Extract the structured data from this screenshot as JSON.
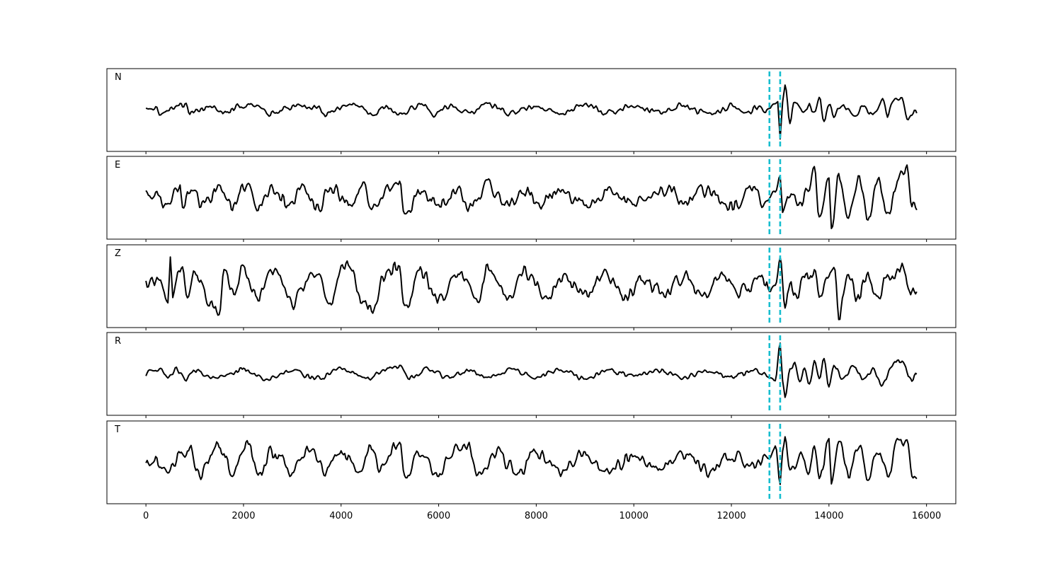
{
  "chart_data": {
    "type": "line",
    "x_axis": {
      "min": -800,
      "max": 16600,
      "ticks": [
        0,
        2000,
        4000,
        6000,
        8000,
        10000,
        12000,
        14000,
        16000
      ],
      "tick_labels": [
        "0",
        "2000",
        "4000",
        "6000",
        "8000",
        "10000",
        "12000",
        "14000",
        "16000"
      ]
    },
    "y_axis": {
      "shown": false,
      "min": -1.25,
      "max": 1.25
    },
    "grid": false,
    "line_color": "#000000",
    "marker_color": "#17becf",
    "markers": {
      "style": "dashed",
      "x": [
        12780,
        13000
      ]
    },
    "x_samples": {
      "start": 0,
      "end": 15800,
      "step": 25
    },
    "panels": [
      {
        "label": "N",
        "keypoints": [
          [
            0,
            0.0
          ],
          [
            200,
            0.07
          ],
          [
            300,
            -0.09
          ],
          [
            500,
            0.05
          ],
          [
            800,
            0.15
          ],
          [
            900,
            -0.12
          ],
          [
            1200,
            0.06
          ],
          [
            1500,
            0.08
          ],
          [
            1600,
            -0.08
          ],
          [
            2000,
            0.12
          ],
          [
            2300,
            0.19
          ],
          [
            2500,
            -0.1
          ],
          [
            3000,
            0.08
          ],
          [
            3500,
            0.12
          ],
          [
            3700,
            -0.14
          ],
          [
            4000,
            0.09
          ],
          [
            4400,
            0.14
          ],
          [
            4600,
            -0.12
          ],
          [
            5000,
            0.1
          ],
          [
            5200,
            -0.2
          ],
          [
            5500,
            0.08
          ],
          [
            5700,
            0.2
          ],
          [
            5900,
            -0.15
          ],
          [
            6200,
            0.1
          ],
          [
            6600,
            -0.1
          ],
          [
            7000,
            0.12
          ],
          [
            7500,
            -0.08
          ],
          [
            8000,
            0.1
          ],
          [
            8500,
            -0.08
          ],
          [
            9000,
            0.12
          ],
          [
            9500,
            -0.1
          ],
          [
            10000,
            0.1
          ],
          [
            10400,
            -0.06
          ],
          [
            11000,
            0.12
          ],
          [
            11500,
            -0.1
          ],
          [
            12000,
            0.1
          ],
          [
            12300,
            -0.08
          ],
          [
            12600,
            0.1
          ],
          [
            12700,
            -0.05
          ],
          [
            12780,
            0.05
          ],
          [
            12850,
            0.15
          ],
          [
            12950,
            0.25
          ],
          [
            13000,
            -0.9
          ],
          [
            13050,
            0.2
          ],
          [
            13100,
            0.75
          ],
          [
            13200,
            -0.3
          ],
          [
            13300,
            0.25
          ],
          [
            13400,
            0.1
          ],
          [
            13500,
            -0.15
          ],
          [
            13600,
            0.2
          ],
          [
            13700,
            -0.1
          ],
          [
            13800,
            0.45
          ],
          [
            13900,
            -0.35
          ],
          [
            14000,
            0.2
          ],
          [
            14100,
            -0.15
          ],
          [
            14300,
            0.15
          ],
          [
            14500,
            -0.1
          ],
          [
            14700,
            0.08
          ],
          [
            14900,
            -0.12
          ],
          [
            15100,
            0.3
          ],
          [
            15200,
            -0.2
          ],
          [
            15300,
            0.25
          ],
          [
            15500,
            0.35
          ],
          [
            15600,
            -0.25
          ],
          [
            15800,
            0.0
          ]
        ],
        "wiggle": 0.14
      },
      {
        "label": "E",
        "keypoints": [
          [
            0,
            0.0
          ],
          [
            200,
            0.2
          ],
          [
            400,
            -0.2
          ],
          [
            700,
            0.3
          ],
          [
            750,
            -0.3
          ],
          [
            900,
            0.25
          ],
          [
            1200,
            -0.2
          ],
          [
            1500,
            0.35
          ],
          [
            1800,
            -0.3
          ],
          [
            2000,
            0.3
          ],
          [
            2100,
            0.45
          ],
          [
            2300,
            -0.3
          ],
          [
            2600,
            0.25
          ],
          [
            3000,
            -0.25
          ],
          [
            3200,
            0.35
          ],
          [
            3500,
            -0.3
          ],
          [
            3800,
            0.3
          ],
          [
            4200,
            -0.25
          ],
          [
            4500,
            0.35
          ],
          [
            4600,
            -0.35
          ],
          [
            5000,
            0.3
          ],
          [
            5200,
            0.55
          ],
          [
            5300,
            -0.55
          ],
          [
            5600,
            0.2
          ],
          [
            6000,
            -0.2
          ],
          [
            6400,
            0.25
          ],
          [
            6600,
            -0.3
          ],
          [
            7000,
            0.35
          ],
          [
            7400,
            -0.3
          ],
          [
            7800,
            0.25
          ],
          [
            8000,
            -0.15
          ],
          [
            8500,
            0.2
          ],
          [
            9000,
            -0.15
          ],
          [
            9500,
            0.2
          ],
          [
            10000,
            -0.15
          ],
          [
            10500,
            0.15
          ],
          [
            10800,
            0.3
          ],
          [
            11000,
            -0.25
          ],
          [
            11500,
            0.25
          ],
          [
            12000,
            -0.25
          ],
          [
            12400,
            0.25
          ],
          [
            12700,
            -0.2
          ],
          [
            12780,
            0.0
          ],
          [
            12900,
            0.25
          ],
          [
            13000,
            0.7
          ],
          [
            13050,
            -0.4
          ],
          [
            13200,
            0.2
          ],
          [
            13400,
            -0.3
          ],
          [
            13600,
            0.3
          ],
          [
            13700,
            0.8
          ],
          [
            13800,
            -0.5
          ],
          [
            14000,
            0.75
          ],
          [
            14050,
            -0.95
          ],
          [
            14200,
            0.7
          ],
          [
            14400,
            -0.6
          ],
          [
            14600,
            0.6
          ],
          [
            14800,
            -0.6
          ],
          [
            15000,
            0.6
          ],
          [
            15200,
            -0.5
          ],
          [
            15400,
            0.5
          ],
          [
            15600,
            0.95
          ],
          [
            15700,
            -0.3
          ],
          [
            15800,
            -0.3
          ]
        ],
        "wiggle": 0.28
      },
      {
        "label": "Z",
        "keypoints": [
          [
            0,
            0.0
          ],
          [
            300,
            0.1
          ],
          [
            450,
            -0.5
          ],
          [
            500,
            0.9
          ],
          [
            550,
            -0.4
          ],
          [
            700,
            0.5
          ],
          [
            900,
            -0.3
          ],
          [
            1000,
            0.4
          ],
          [
            1300,
            -0.5
          ],
          [
            1500,
            -0.8
          ],
          [
            1600,
            0.5
          ],
          [
            1800,
            -0.3
          ],
          [
            2000,
            0.6
          ],
          [
            2300,
            -0.4
          ],
          [
            2600,
            0.5
          ],
          [
            3000,
            -0.5
          ],
          [
            3400,
            0.4
          ],
          [
            3800,
            -0.4
          ],
          [
            4000,
            0.5
          ],
          [
            4200,
            0.6
          ],
          [
            4400,
            -0.5
          ],
          [
            4600,
            -0.6
          ],
          [
            5000,
            0.5
          ],
          [
            5200,
            0.7
          ],
          [
            5300,
            -0.8
          ],
          [
            5600,
            0.5
          ],
          [
            6000,
            -0.5
          ],
          [
            6400,
            0.5
          ],
          [
            6800,
            -0.5
          ],
          [
            7000,
            0.55
          ],
          [
            7400,
            -0.4
          ],
          [
            7800,
            0.4
          ],
          [
            8200,
            -0.3
          ],
          [
            8600,
            0.3
          ],
          [
            9000,
            -0.3
          ],
          [
            9400,
            0.3
          ],
          [
            9800,
            -0.25
          ],
          [
            10200,
            0.2
          ],
          [
            10600,
            -0.2
          ],
          [
            11000,
            0.3
          ],
          [
            11400,
            -0.25
          ],
          [
            11800,
            0.25
          ],
          [
            12200,
            -0.2
          ],
          [
            12600,
            0.2
          ],
          [
            12780,
            -0.1
          ],
          [
            12900,
            0.1
          ],
          [
            13000,
            0.85
          ],
          [
            13100,
            -0.6
          ],
          [
            13200,
            0.2
          ],
          [
            13300,
            -0.3
          ],
          [
            13500,
            0.3
          ],
          [
            13700,
            0.5
          ],
          [
            13800,
            -0.4
          ],
          [
            14000,
            0.3
          ],
          [
            14100,
            0.65
          ],
          [
            14200,
            -0.95
          ],
          [
            14400,
            0.4
          ],
          [
            14600,
            -0.3
          ],
          [
            14800,
            0.3
          ],
          [
            15000,
            -0.3
          ],
          [
            15200,
            0.25
          ],
          [
            15500,
            0.45
          ],
          [
            15700,
            -0.25
          ],
          [
            15800,
            -0.3
          ]
        ],
        "wiggle": 0.32
      },
      {
        "label": "R",
        "keypoints": [
          [
            0,
            0.0
          ],
          [
            300,
            0.08
          ],
          [
            500,
            -0.08
          ],
          [
            600,
            0.15
          ],
          [
            800,
            -0.15
          ],
          [
            1000,
            0.1
          ],
          [
            1500,
            -0.12
          ],
          [
            2000,
            0.12
          ],
          [
            2500,
            -0.15
          ],
          [
            3000,
            0.12
          ],
          [
            3500,
            -0.12
          ],
          [
            4000,
            0.15
          ],
          [
            4500,
            -0.12
          ],
          [
            5000,
            0.15
          ],
          [
            5200,
            0.22
          ],
          [
            5400,
            -0.15
          ],
          [
            5800,
            0.15
          ],
          [
            6200,
            -0.12
          ],
          [
            6600,
            0.12
          ],
          [
            7000,
            -0.1
          ],
          [
            7500,
            0.12
          ],
          [
            8000,
            -0.1
          ],
          [
            8500,
            0.1
          ],
          [
            9000,
            -0.1
          ],
          [
            9500,
            0.08
          ],
          [
            10000,
            -0.08
          ],
          [
            10500,
            0.1
          ],
          [
            11000,
            -0.1
          ],
          [
            11500,
            0.08
          ],
          [
            12000,
            -0.08
          ],
          [
            12500,
            0.08
          ],
          [
            12700,
            -0.05
          ],
          [
            12780,
            -0.1
          ],
          [
            12900,
            -0.2
          ],
          [
            13000,
            0.95
          ],
          [
            13050,
            -0.2
          ],
          [
            13100,
            -0.7
          ],
          [
            13200,
            0.1
          ],
          [
            13300,
            0.3
          ],
          [
            13400,
            -0.2
          ],
          [
            13500,
            0.15
          ],
          [
            13600,
            -0.3
          ],
          [
            13700,
            0.35
          ],
          [
            13800,
            -0.1
          ],
          [
            13900,
            0.45
          ],
          [
            14000,
            -0.4
          ],
          [
            14100,
            0.25
          ],
          [
            14300,
            -0.2
          ],
          [
            14500,
            0.25
          ],
          [
            14700,
            -0.15
          ],
          [
            14900,
            0.1
          ],
          [
            15100,
            -0.35
          ],
          [
            15300,
            0.3
          ],
          [
            15500,
            0.4
          ],
          [
            15700,
            -0.2
          ],
          [
            15800,
            0.0
          ]
        ],
        "wiggle": 0.12
      },
      {
        "label": "T",
        "keypoints": [
          [
            0,
            0.0
          ],
          [
            200,
            0.12
          ],
          [
            400,
            -0.12
          ],
          [
            800,
            0.3
          ],
          [
            900,
            0.4
          ],
          [
            1100,
            -0.3
          ],
          [
            1500,
            0.45
          ],
          [
            1800,
            -0.35
          ],
          [
            2000,
            0.4
          ],
          [
            2100,
            0.55
          ],
          [
            2300,
            -0.35
          ],
          [
            2600,
            0.3
          ],
          [
            3000,
            -0.3
          ],
          [
            3300,
            0.35
          ],
          [
            3700,
            -0.3
          ],
          [
            4000,
            0.3
          ],
          [
            4400,
            -0.3
          ],
          [
            4600,
            0.5
          ],
          [
            4800,
            -0.3
          ],
          [
            5100,
            0.45
          ],
          [
            5200,
            0.5
          ],
          [
            5300,
            -0.55
          ],
          [
            5600,
            0.3
          ],
          [
            6000,
            -0.3
          ],
          [
            6300,
            0.4
          ],
          [
            6600,
            0.55
          ],
          [
            6800,
            -0.4
          ],
          [
            7200,
            0.3
          ],
          [
            7600,
            -0.3
          ],
          [
            8000,
            0.3
          ],
          [
            8500,
            -0.25
          ],
          [
            9000,
            0.25
          ],
          [
            9500,
            -0.25
          ],
          [
            10000,
            0.25
          ],
          [
            10500,
            -0.2
          ],
          [
            11000,
            0.25
          ],
          [
            11500,
            -0.25
          ],
          [
            12000,
            0.2
          ],
          [
            12500,
            -0.2
          ],
          [
            12700,
            0.15
          ],
          [
            12780,
            0.1
          ],
          [
            12900,
            0.5
          ],
          [
            13000,
            -0.7
          ],
          [
            13050,
            0.3
          ],
          [
            13100,
            0.75
          ],
          [
            13200,
            -0.3
          ],
          [
            13400,
            0.2
          ],
          [
            13600,
            -0.2
          ],
          [
            13700,
            0.45
          ],
          [
            13800,
            -0.4
          ],
          [
            14000,
            0.6
          ],
          [
            14050,
            -0.85
          ],
          [
            14200,
            0.6
          ],
          [
            14400,
            -0.4
          ],
          [
            14600,
            0.5
          ],
          [
            14800,
            -0.5
          ],
          [
            15000,
            0.4
          ],
          [
            15200,
            -0.4
          ],
          [
            15400,
            0.6
          ],
          [
            15600,
            0.65
          ],
          [
            15700,
            -0.3
          ],
          [
            15800,
            -0.35
          ]
        ],
        "wiggle": 0.28
      }
    ]
  }
}
